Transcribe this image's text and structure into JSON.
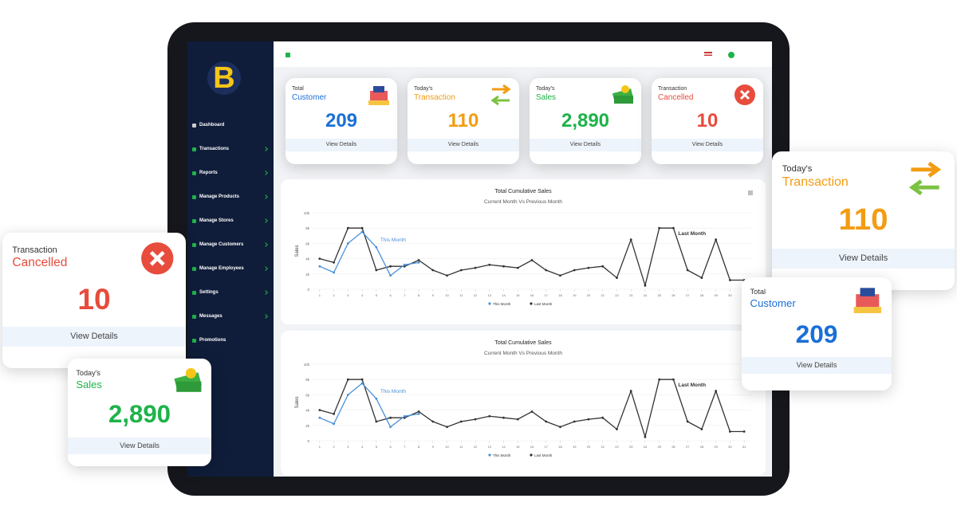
{
  "logo": "B",
  "sidebar": {
    "menu": [
      "Dashboard",
      "Transactions",
      "Reports",
      "Manage Products",
      "Manage Stores",
      "Manage Customers",
      "Manage Employees",
      "Settings",
      "Messages",
      "Promotions"
    ]
  },
  "cards": [
    {
      "label": "Total",
      "title": "Customer",
      "value": "209",
      "link": "View Details"
    },
    {
      "label": "Today's",
      "title": "Transaction",
      "value": "110",
      "link": "View Details"
    },
    {
      "label": "Today's",
      "title": "Sales",
      "value": "2,890",
      "link": "View Details"
    },
    {
      "label": "Transaction",
      "title": "Cancelled",
      "value": "10",
      "link": "View Details"
    }
  ],
  "chart_data": [
    {
      "type": "line",
      "title": "Total Cumulative Sales",
      "subtitle": "Current Month Vs Previous Month",
      "y_label": "Sales",
      "x": [
        1,
        2,
        3,
        4,
        5,
        6,
        7,
        8,
        9,
        10,
        11,
        12,
        13,
        14,
        15,
        16,
        17,
        18,
        19,
        20,
        21,
        22,
        23,
        24,
        25,
        26,
        27,
        28,
        29,
        30,
        31
      ],
      "xlim": [
        0.5,
        31.5
      ],
      "ylim": [
        0,
        10000
      ],
      "yticks": [
        {
          "value": 0,
          "label": "0"
        },
        {
          "value": 2000,
          "label": "2k"
        },
        {
          "value": 4000,
          "label": "4k"
        },
        {
          "value": 6000,
          "label": "6k"
        },
        {
          "value": 8000,
          "label": "8k"
        },
        {
          "value": 10000,
          "label": "10k"
        }
      ],
      "series": [
        {
          "name": "This Month",
          "color": "#4a90d9",
          "values": [
            3000,
            2200,
            6000,
            7500,
            5500,
            1800,
            3200,
            3500,
            null,
            null,
            null,
            null,
            null,
            null,
            null,
            null,
            null,
            null,
            null,
            null,
            null,
            null,
            null,
            null,
            null,
            null,
            null,
            null,
            null,
            null,
            null
          ]
        },
        {
          "name": "Last Month",
          "color": "#333333",
          "values": [
            4000,
            3500,
            8000,
            8000,
            2500,
            3000,
            3000,
            3800,
            2500,
            1800,
            2500,
            2800,
            3200,
            3000,
            2800,
            3800,
            2500,
            1800,
            2500,
            2800,
            3000,
            1500,
            6500,
            500,
            8000,
            8000,
            2500,
            1500,
            6500,
            1200,
            1200
          ]
        }
      ],
      "annotations": [
        "This Month",
        "Last Month"
      ],
      "legend": "bottom"
    },
    {
      "type": "line",
      "title": "Total Cumulative Sales",
      "subtitle": "Current Month Vs Previous Month",
      "y_label": "Sales",
      "x": [
        1,
        2,
        3,
        4,
        5,
        6,
        7,
        8,
        9,
        10,
        11,
        12,
        13,
        14,
        15,
        16,
        17,
        18,
        19,
        20,
        21,
        22,
        23,
        24,
        25,
        26,
        27,
        28,
        29,
        30,
        31
      ],
      "xlim": [
        0.5,
        31.5
      ],
      "ylim": [
        0,
        10000
      ],
      "yticks": [
        {
          "value": 0,
          "label": "0"
        },
        {
          "value": 2000,
          "label": "2k"
        },
        {
          "value": 4000,
          "label": "4k"
        },
        {
          "value": 6000,
          "label": "6k"
        },
        {
          "value": 8000,
          "label": "8k"
        },
        {
          "value": 10000,
          "label": "10k"
        }
      ],
      "series": [
        {
          "name": "This Month",
          "color": "#4a90d9",
          "values": [
            3000,
            2200,
            6000,
            7500,
            5500,
            1800,
            3200,
            3500,
            null,
            null,
            null,
            null,
            null,
            null,
            null,
            null,
            null,
            null,
            null,
            null,
            null,
            null,
            null,
            null,
            null,
            null,
            null,
            null,
            null,
            null,
            null
          ]
        },
        {
          "name": "Last Month",
          "color": "#333333",
          "values": [
            4000,
            3500,
            8000,
            8000,
            2500,
            3000,
            3000,
            3800,
            2500,
            1800,
            2500,
            2800,
            3200,
            3000,
            2800,
            3800,
            2500,
            1800,
            2500,
            2800,
            3000,
            1500,
            6500,
            500,
            8000,
            8000,
            2500,
            1500,
            6500,
            1200,
            1200
          ]
        }
      ],
      "annotations": [
        "This Month",
        "Last Month"
      ],
      "legend": "bottom"
    }
  ]
}
